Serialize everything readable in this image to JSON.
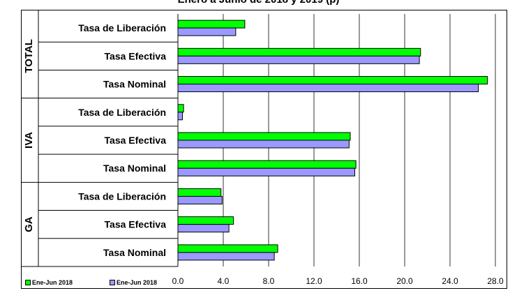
{
  "chart_data": {
    "type": "bar",
    "orientation": "horizontal",
    "title": "Enero a Junio de 2018 y 2019 (p)",
    "groups": [
      {
        "name": "TOTAL",
        "categories": [
          "Tasa de Liberación",
          "Tasa Efectiva",
          "Tasa Nominal"
        ]
      },
      {
        "name": "IVA",
        "categories": [
          "Tasa de Liberación",
          "Tasa Efectiva",
          "Tasa Nominal"
        ]
      },
      {
        "name": "GA",
        "categories": [
          "Tasa de Liberación",
          "Tasa Efectiva",
          "Tasa Nominal"
        ]
      }
    ],
    "series": [
      {
        "name": "Ene-Jun 2018",
        "color": "#00ff00",
        "values": [
          5.9,
          21.4,
          27.3,
          0.5,
          15.2,
          15.7,
          3.8,
          4.9,
          8.8
        ]
      },
      {
        "name": "Ene-Jun 2018",
        "color": "#9999ff",
        "values": [
          5.1,
          21.3,
          26.5,
          0.4,
          15.1,
          15.6,
          3.9,
          4.5,
          8.5
        ]
      }
    ],
    "xlim": [
      0,
      28
    ],
    "xticks": [
      "0.0",
      "4.0",
      "8.0",
      "12.0",
      "16.0",
      "20.0",
      "24.0",
      "28.0"
    ],
    "grid": true,
    "legend": "bottom-left"
  }
}
